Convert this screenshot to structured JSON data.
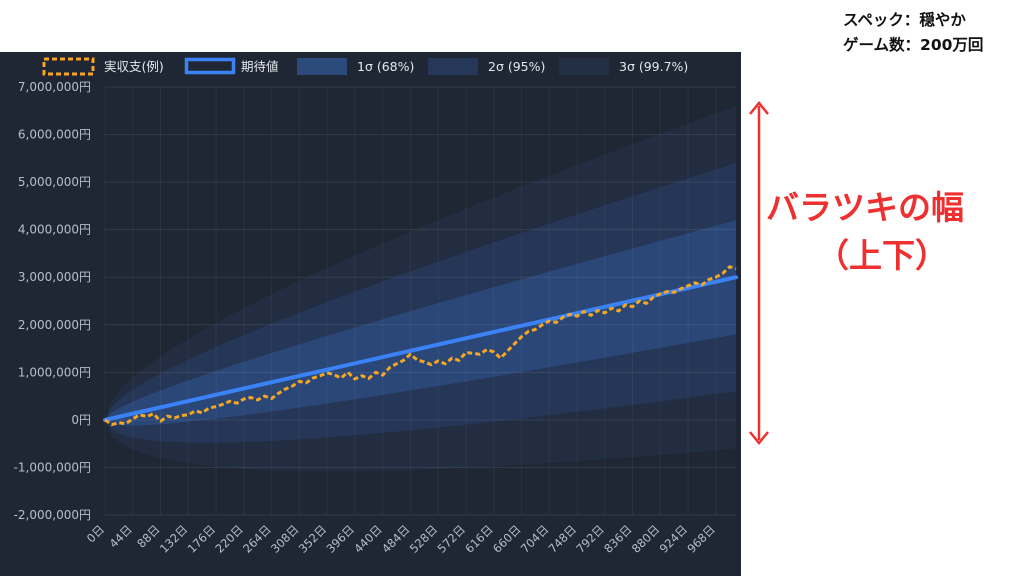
{
  "header": {
    "spec": "スペック：穏やか",
    "games": "ゲーム数：200万回"
  },
  "annotation": {
    "label": "バラツキの幅",
    "sublabel": "（上下）",
    "color": "#ee3030"
  },
  "chart_data": {
    "type": "area",
    "legend": [
      {
        "key": "actual",
        "label": "実収支(例)",
        "color": "#f5a623",
        "style": "dashed"
      },
      {
        "key": "expected",
        "label": "期待値",
        "color": "#3b82f6",
        "style": "solid"
      },
      {
        "key": "band1",
        "label": "1σ (68%)",
        "color": "#2c4a7c"
      },
      {
        "key": "band2",
        "label": "2σ (95%)",
        "color": "#26385a"
      },
      {
        "key": "band3",
        "label": "3σ (99.7%)",
        "color": "#232f44"
      }
    ],
    "legend_position": "top",
    "grid": true,
    "xlim": [
      0,
      1000
    ],
    "ylim": [
      -2000000,
      7000000
    ],
    "x_ticks": [
      0,
      44,
      88,
      132,
      176,
      220,
      264,
      308,
      352,
      396,
      440,
      484,
      528,
      572,
      616,
      660,
      704,
      748,
      792,
      836,
      880,
      924,
      968
    ],
    "x_tick_labels": [
      "0日",
      "44日",
      "88日",
      "132日",
      "176日",
      "220日",
      "264日",
      "308日",
      "352日",
      "396日",
      "440日",
      "484日",
      "528日",
      "572日",
      "616日",
      "660日",
      "704日",
      "748日",
      "792日",
      "836日",
      "880日",
      "924日",
      "968日"
    ],
    "y_ticks": [
      -2000000,
      -1000000,
      0,
      1000000,
      2000000,
      3000000,
      4000000,
      5000000,
      6000000,
      7000000
    ],
    "y_tick_labels": [
      "-2,000,000円",
      "-1,000,000円",
      "0円",
      "1,000,000円",
      "2,000,000円",
      "3,000,000円",
      "4,000,000円",
      "5,000,000円",
      "6,000,000円",
      "7,000,000円"
    ],
    "expected": {
      "x": [
        0,
        1000
      ],
      "y": [
        0,
        3000000
      ]
    },
    "sigma_at_end": 1200000,
    "actual": {
      "x": [
        0,
        11,
        22,
        33,
        44,
        55,
        66,
        77,
        88,
        99,
        110,
        121,
        132,
        143,
        154,
        165,
        176,
        187,
        198,
        209,
        220,
        231,
        242,
        253,
        264,
        275,
        286,
        297,
        308,
        319,
        330,
        341,
        352,
        363,
        374,
        385,
        396,
        407,
        418,
        429,
        440,
        451,
        462,
        473,
        484,
        495,
        506,
        517,
        528,
        539,
        550,
        561,
        572,
        583,
        594,
        605,
        616,
        627,
        638,
        649,
        660,
        671,
        682,
        693,
        704,
        715,
        726,
        737,
        748,
        759,
        770,
        781,
        792,
        803,
        814,
        825,
        836,
        847,
        858,
        869,
        880,
        891,
        902,
        913,
        924,
        935,
        946,
        957,
        968,
        979,
        990,
        1000
      ],
      "y": [
        0,
        -100000,
        -60000,
        -80000,
        20000,
        110000,
        70000,
        130000,
        -30000,
        80000,
        40000,
        90000,
        110000,
        190000,
        150000,
        250000,
        280000,
        330000,
        390000,
        350000,
        440000,
        470000,
        420000,
        500000,
        450000,
        560000,
        650000,
        710000,
        810000,
        780000,
        880000,
        930000,
        990000,
        950000,
        880000,
        1000000,
        860000,
        930000,
        870000,
        1000000,
        940000,
        1100000,
        1180000,
        1250000,
        1380000,
        1260000,
        1220000,
        1160000,
        1240000,
        1180000,
        1300000,
        1250000,
        1420000,
        1400000,
        1380000,
        1480000,
        1430000,
        1300000,
        1450000,
        1600000,
        1750000,
        1860000,
        1900000,
        2000000,
        2080000,
        2050000,
        2160000,
        2220000,
        2180000,
        2280000,
        2200000,
        2300000,
        2250000,
        2350000,
        2290000,
        2420000,
        2380000,
        2500000,
        2450000,
        2580000,
        2650000,
        2700000,
        2680000,
        2760000,
        2820000,
        2880000,
        2840000,
        2950000,
        3000000,
        3080000,
        3220000,
        3180000
      ]
    }
  }
}
